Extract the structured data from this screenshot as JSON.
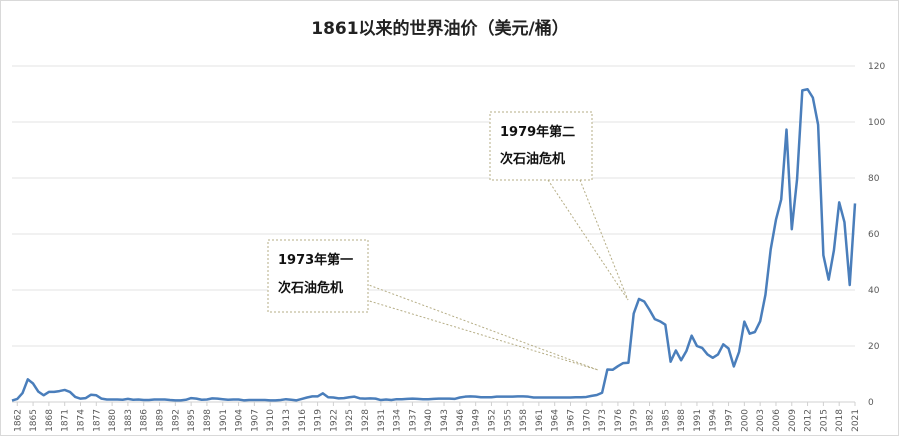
{
  "chart_data": {
    "type": "line",
    "title": "1861以来的世界油价（美元/桶）",
    "x": [
      1861,
      1862,
      1863,
      1864,
      1865,
      1866,
      1867,
      1868,
      1869,
      1870,
      1871,
      1872,
      1873,
      1874,
      1875,
      1876,
      1877,
      1878,
      1879,
      1880,
      1881,
      1882,
      1883,
      1884,
      1885,
      1886,
      1887,
      1888,
      1889,
      1890,
      1891,
      1892,
      1893,
      1894,
      1895,
      1896,
      1897,
      1898,
      1899,
      1900,
      1901,
      1902,
      1903,
      1904,
      1905,
      1906,
      1907,
      1908,
      1909,
      1910,
      1911,
      1912,
      1913,
      1914,
      1915,
      1916,
      1917,
      1918,
      1919,
      1920,
      1921,
      1922,
      1923,
      1924,
      1925,
      1926,
      1927,
      1928,
      1929,
      1930,
      1931,
      1932,
      1933,
      1934,
      1935,
      1936,
      1937,
      1938,
      1939,
      1940,
      1941,
      1942,
      1943,
      1944,
      1945,
      1946,
      1947,
      1948,
      1949,
      1950,
      1951,
      1952,
      1953,
      1954,
      1955,
      1956,
      1957,
      1958,
      1959,
      1960,
      1961,
      1962,
      1963,
      1964,
      1965,
      1966,
      1967,
      1968,
      1969,
      1970,
      1971,
      1972,
      1973,
      1974,
      1975,
      1976,
      1977,
      1978,
      1979,
      1980,
      1981,
      1982,
      1983,
      1984,
      1985,
      1986,
      1987,
      1988,
      1989,
      1990,
      1991,
      1992,
      1993,
      1994,
      1995,
      1996,
      1997,
      1998,
      1999,
      2000,
      2001,
      2002,
      2003,
      2004,
      2005,
      2006,
      2007,
      2008,
      2009,
      2010,
      2011,
      2012,
      2013,
      2014,
      2015,
      2016,
      2017,
      2018,
      2019,
      2020,
      2021
    ],
    "series": [
      {
        "name": "油价",
        "color": "#4a7ebb",
        "values": [
          0.5,
          1.1,
          3.2,
          8.1,
          6.6,
          3.7,
          2.4,
          3.6,
          3.6,
          3.9,
          4.3,
          3.6,
          1.8,
          1.2,
          1.4,
          2.6,
          2.4,
          1.2,
          0.9,
          0.9,
          0.9,
          0.8,
          1.1,
          0.8,
          0.9,
          0.7,
          0.7,
          0.9,
          0.9,
          0.9,
          0.7,
          0.6,
          0.6,
          0.8,
          1.4,
          1.2,
          0.8,
          0.9,
          1.3,
          1.2,
          1.0,
          0.8,
          0.9,
          0.9,
          0.6,
          0.7,
          0.7,
          0.7,
          0.7,
          0.6,
          0.6,
          0.7,
          1.0,
          0.8,
          0.6,
          1.1,
          1.6,
          2.0,
          2.0,
          3.1,
          1.7,
          1.6,
          1.3,
          1.4,
          1.7,
          1.9,
          1.3,
          1.2,
          1.3,
          1.2,
          0.7,
          0.9,
          0.7,
          1.0,
          1.0,
          1.1,
          1.2,
          1.1,
          1.0,
          1.0,
          1.1,
          1.2,
          1.2,
          1.2,
          1.1,
          1.6,
          1.9,
          2.0,
          1.9,
          1.7,
          1.7,
          1.7,
          1.9,
          1.9,
          1.9,
          1.9,
          2.0,
          2.0,
          1.9,
          1.6,
          1.6,
          1.6,
          1.6,
          1.6,
          1.6,
          1.6,
          1.6,
          1.7,
          1.7,
          1.8,
          2.2,
          2.5,
          3.3,
          11.6,
          11.5,
          12.8,
          13.9,
          14.0,
          31.6,
          36.8,
          35.9,
          32.9,
          29.6,
          28.8,
          27.6,
          14.4,
          18.4,
          14.9,
          18.2,
          23.7,
          20.0,
          19.3,
          17.0,
          15.8,
          17.0,
          20.6,
          19.1,
          12.7,
          17.9,
          28.7,
          24.4,
          25.0,
          28.8,
          38.3,
          54.5,
          65.1,
          72.4,
          97.3,
          61.7,
          79.5,
          111.3,
          111.7,
          108.7,
          99.0,
          52.4,
          43.7,
          54.2,
          71.3,
          64.2,
          41.8,
          70.9
        ]
      }
    ],
    "xlim": [
      1861,
      2021
    ],
    "xticks": [
      1862,
      1865,
      1868,
      1871,
      1874,
      1877,
      1880,
      1883,
      1886,
      1889,
      1892,
      1895,
      1898,
      1901,
      1904,
      1907,
      1910,
      1913,
      1916,
      1919,
      1922,
      1925,
      1928,
      1931,
      1934,
      1937,
      1940,
      1943,
      1946,
      1949,
      1952,
      1955,
      1958,
      1961,
      1964,
      1967,
      1970,
      1973,
      1976,
      1979,
      1982,
      1985,
      1988,
      1991,
      1994,
      1997,
      2000,
      2003,
      2006,
      2009,
      2012,
      2015,
      2018,
      2021
    ],
    "ylim": [
      0,
      120
    ],
    "yticks": [
      0,
      20,
      40,
      60,
      80,
      100,
      120
    ],
    "grid": true,
    "annotations": [
      {
        "lines": [
          "1973年第一",
          "次石油危机"
        ]
      },
      {
        "lines": [
          "1979年第二",
          "次石油危机"
        ]
      }
    ]
  }
}
